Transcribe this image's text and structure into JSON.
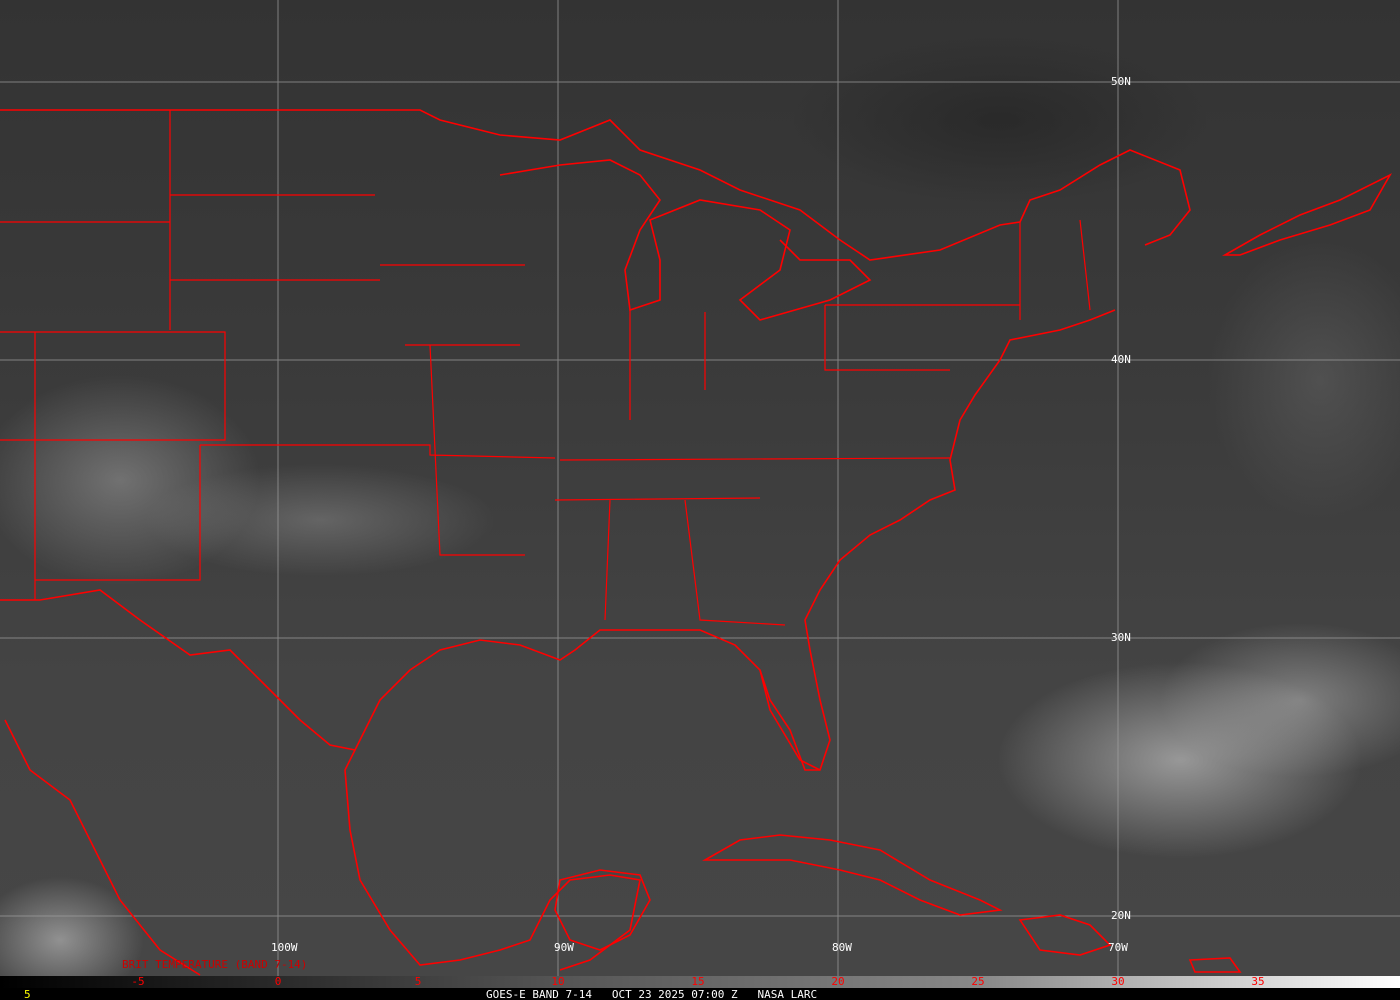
{
  "map": {
    "lat_labels": [
      "50N",
      "40N",
      "30N",
      "20N"
    ],
    "lon_labels": [
      "100W",
      "90W",
      "80W",
      "70W"
    ],
    "border_color": "#ff0000",
    "grid_color": "#a0a0a0"
  },
  "colorbar": {
    "title": "BRIT TEMPERATURE (BAND 7-14)",
    "ticks": [
      "-5",
      "0",
      "5",
      "10",
      "15",
      "20",
      "25",
      "30",
      "35"
    ],
    "tick_color": "#ff0000"
  },
  "footer": {
    "corner_value": "5",
    "caption": "GOES-E BAND 7-14   OCT 23 2025 07:00 Z   NASA LARC"
  }
}
